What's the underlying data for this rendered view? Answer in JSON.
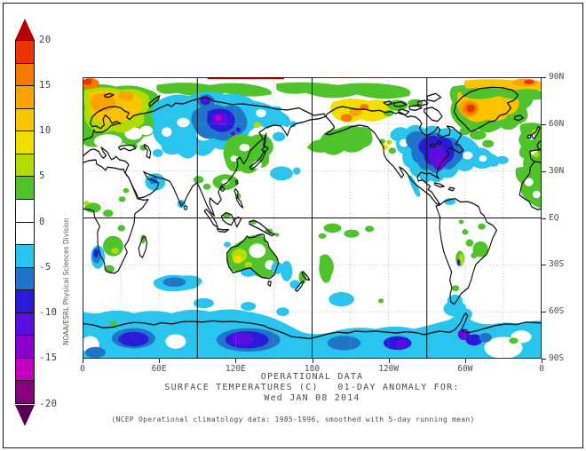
{
  "watermark": "NOAA/ESRL Physical Sciences Division",
  "titles": {
    "line1": "OPERATIONAL DATA",
    "line2": "SURFACE TEMPERATURES (C)   01-DAY ANOMALY FOR:",
    "line3": "Wed JAN 08 2014"
  },
  "footnote": "(NCEP Operational climatology data: 1985-1996, smoothed with 5-day running mean)",
  "palette": {
    "r": "#ee3200",
    "o": "#f57a00",
    "am": "#fba400",
    "gd": "#fcc400",
    "y": "#f2df00",
    "yg": "#b4dc00",
    "g": "#4fc32a",
    "wh": "#ffffff",
    "c": "#29c5ee",
    "sb": "#1f76c8",
    "ib": "#2b1bd8",
    "vi": "#5c0ee0",
    "pu": "#8a00cc",
    "ma": "#c400c0",
    "dm": "#87007e",
    "dr": "#b40000",
    "dp": "#570052"
  },
  "colorbar": {
    "labels": [
      "20",
      "15",
      "10",
      "5",
      "0",
      "-5",
      "-10",
      "-15",
      "-20"
    ],
    "arrow_top_color": "#b40000",
    "arrow_bottom_color": "#570052",
    "segments": [
      {
        "range": "17.5 to 20",
        "color": "#ee3200"
      },
      {
        "range": "15 to 17.5",
        "color": "#f57a00"
      },
      {
        "range": "12.5 to 15",
        "color": "#fba400"
      },
      {
        "range": "10 to 12.5",
        "color": "#fcc400"
      },
      {
        "range": "7.5 to 10",
        "color": "#f2df00"
      },
      {
        "range": "5 to 7.5",
        "color": "#b4dc00"
      },
      {
        "range": "2.5 to 5",
        "color": "#4fc32a"
      },
      {
        "range": "0 to 2.5",
        "color": "#ffffff"
      },
      {
        "range": "-2.5 to 0",
        "color": "#ffffff"
      },
      {
        "range": "-5 to -2.5",
        "color": "#29c5ee"
      },
      {
        "range": "-7.5 to -5",
        "color": "#1f76c8"
      },
      {
        "range": "-10 to -7.5",
        "color": "#2b1bd8"
      },
      {
        "range": "-12.5 to -10",
        "color": "#5c0ee0"
      },
      {
        "range": "-15 to -12.5",
        "color": "#8a00cc"
      },
      {
        "range": "-17.5 to -15",
        "color": "#c400c0"
      },
      {
        "range": "-20 to -17.5",
        "color": "#87007e"
      }
    ]
  },
  "axes": {
    "x_ticks": [
      "0",
      "60E",
      "120E",
      "180",
      "120W",
      "60W",
      "0"
    ],
    "y_ticks": [
      "90N",
      "60N",
      "30N",
      "EQ",
      "30S",
      "60S",
      "90S"
    ]
  },
  "chart_data": {
    "type": "heatmap",
    "subtype": "filled-contour world map, equirectangular 0E-360E",
    "title": "OPERATIONAL DATA",
    "subtitle": "SURFACE TEMPERATURES (C)  01-DAY ANOMALY FOR: Wed JAN 08 2014",
    "source_note": "(NCEP Operational climatology data: 1985-1996, smoothed with 5-day running mean)",
    "units": "degrees C anomaly",
    "colorbar_range": [
      -20,
      20
    ],
    "contour_interval": 2.5,
    "label_interval": 5,
    "grid": {
      "solid_meridians": [
        "90E",
        "180",
        "90W"
      ],
      "solid_parallels": [
        "Equator"
      ],
      "dotted_interval_deg": 30
    },
    "anomaly_regions": [
      {
        "region": "Arctic corner NW Europe (0-15E, >83N)",
        "anomaly_c": "+15 to +20"
      },
      {
        "region": "Scandinavia / Barents / NW Russia",
        "anomaly_c": "+7.5 to +15"
      },
      {
        "region": "Arctic coastal band (green rim along 80-88N)",
        "anomaly_c": "+2.5 to +5"
      },
      {
        "region": "North-pole strip 95E-160E",
        "anomaly_c": ">+20 (thin dark-red line)"
      },
      {
        "region": "Central Siberia (90E-130E, 55-75N)",
        "anomaly_c": "-10 to -17.5 (magenta core)"
      },
      {
        "region": "Kara Sea spot (95E, 74N)",
        "anomaly_c": "-10 to -12.5"
      },
      {
        "region": "Kazakhstan / Caspian east",
        "anomaly_c": "-2.5 to -5"
      },
      {
        "region": "Arabian Sea / Oman",
        "anomaly_c": "-2.5 to -7.5"
      },
      {
        "region": "Japan / Korea / E China",
        "anomaly_c": "+2.5 to +5"
      },
      {
        "region": "Pacific SE of Japan (150-165E, 25-33N)",
        "anomaly_c": "-2.5 to -5"
      },
      {
        "region": "NE Pacific (176W-134W, 30-50N)",
        "anomaly_c": "+2.5 to +5"
      },
      {
        "region": "Alaska",
        "anomaly_c": "+7.5 to +15"
      },
      {
        "region": "Eastern North America / Great Lakes / SE US",
        "anomaly_c": "-7.5 to -12.5 (violet core)"
      },
      {
        "region": "Baffin Bay / W Greenland",
        "anomaly_c": "+15 to +20 (red core)"
      },
      {
        "region": "Greenland interior",
        "anomaly_c": "+7.5 to +12.5"
      },
      {
        "region": "Top-right Arctic (20W-0, >84N)",
        "anomaly_c": "+12.5 to +20"
      },
      {
        "region": "UK / Iberia / NW Africa coast",
        "anomaly_c": "+2.5 to +7.5"
      },
      {
        "region": "Mid-Atlantic spot (31W, 37N)",
        "anomaly_c": "-2.5 to -5"
      },
      {
        "region": "Gulf of Guinea / southern Africa patches",
        "anomaly_c": "+2.5 to +5"
      },
      {
        "region": "Namibia coast",
        "anomaly_c": "-5 to -10"
      },
      {
        "region": "SW Indian Ocean (55-95E, 38-46S)",
        "anomaly_c": "-2.5 to -7.5"
      },
      {
        "region": "Central/W Australia",
        "anomaly_c": "+5 to +10"
      },
      {
        "region": "Great Australian Bight / Tasman Sea",
        "anomaly_c": "-2.5 to -5"
      },
      {
        "region": "New Zealand / S-central Pacific blob",
        "anomaly_c": "+2.5 to +5"
      },
      {
        "region": "SE Brazil / Paraguay",
        "anomaly_c": "+2.5 to +7.5"
      },
      {
        "region": "S Chile / Drake Passage",
        "anomaly_c": "-2.5 to -5"
      },
      {
        "region": "Antarctic coast 20E-60E",
        "anomaly_c": "-7.5 to -10"
      },
      {
        "region": "Antarctic coast 95E-170E",
        "anomaly_c": "-10 to -12.5 (violet core)"
      },
      {
        "region": "Antarctic Peninsula base",
        "anomaly_c": "-10 to -12.5"
      },
      {
        "region": "Weddell sector (35W-10W)",
        "anomaly_c": "0 (white gap, green spot on coast)"
      },
      {
        "region": "Southern Ocean band (most longitudes)",
        "anomaly_c": "-2.5 to -5"
      }
    ]
  }
}
